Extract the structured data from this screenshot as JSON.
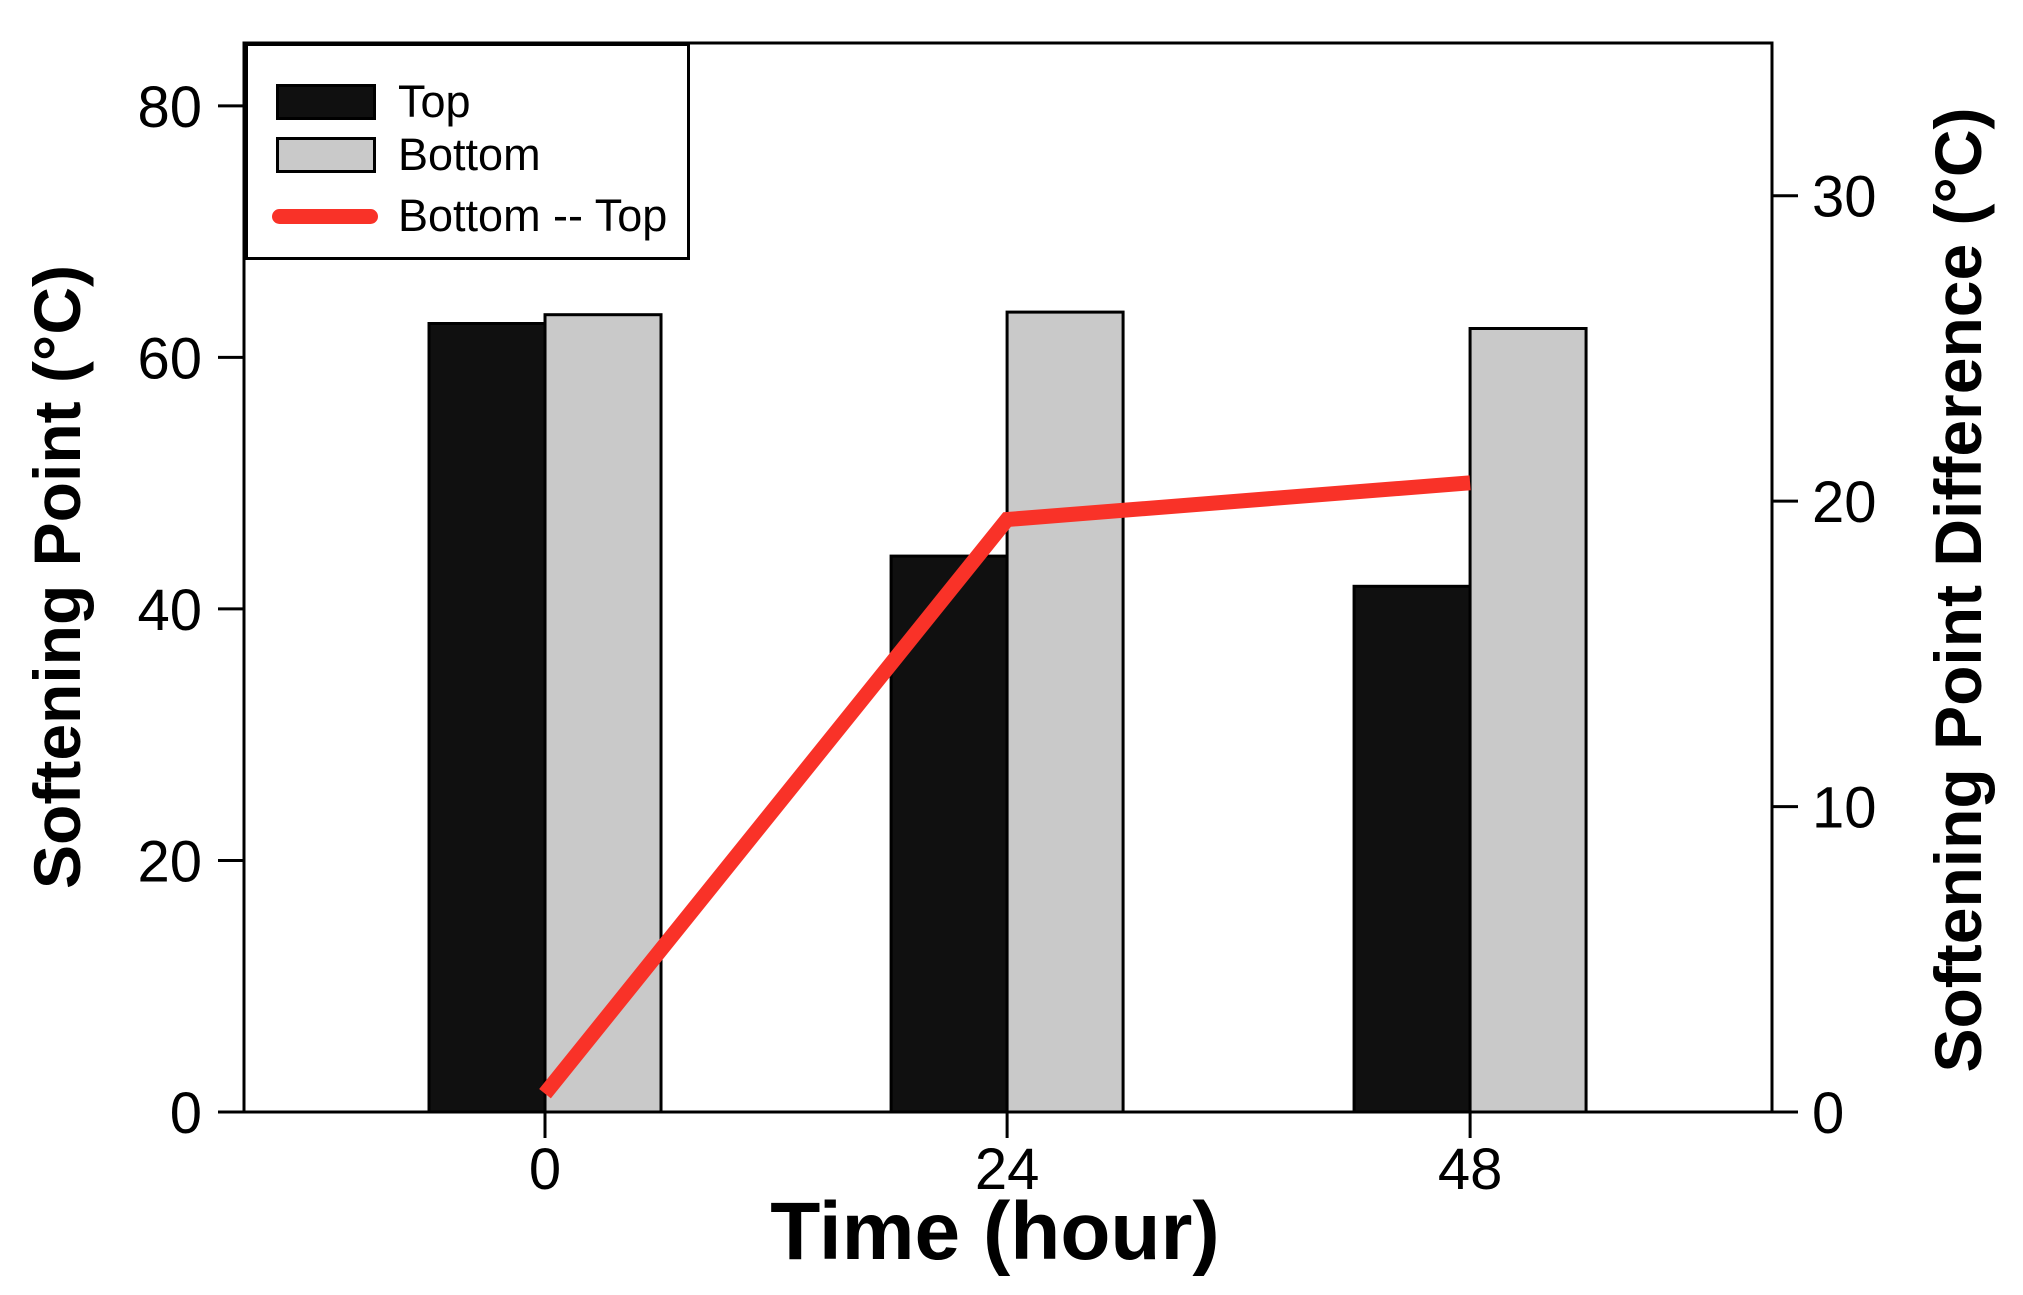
{
  "chart_data": {
    "type": "bar+line-dual-axis",
    "categories": [
      "0",
      "24",
      "48"
    ],
    "xlabel": "Time (hour)",
    "left_axis": {
      "label": "Softening Point (°C)",
      "ticks": [
        0,
        20,
        40,
        60,
        80
      ],
      "range": [
        0,
        85
      ]
    },
    "right_axis": {
      "label": "Softening Point Difference (°C)",
      "ticks": [
        0,
        10,
        20,
        30
      ],
      "range": [
        0,
        35
      ]
    },
    "series": [
      {
        "name": "Top",
        "type": "bar",
        "axis": "left",
        "color": "#101010",
        "border": "#000000",
        "values": [
          62.7,
          44.2,
          41.8
        ]
      },
      {
        "name": "Bottom",
        "type": "bar",
        "axis": "left",
        "color": "#c9c9c9",
        "border": "#000000",
        "values": [
          63.4,
          63.6,
          62.3
        ]
      },
      {
        "name": "Bottom -- Top",
        "type": "line",
        "axis": "right",
        "color": "#f93228",
        "values": [
          0.6,
          19.4,
          20.6
        ]
      }
    ],
    "legend": {
      "position": "top-left",
      "entries": [
        "Top",
        "Bottom",
        "Bottom -- Top"
      ]
    },
    "frame_color": "#000000",
    "background_color": "#ffffff",
    "grid": false
  }
}
